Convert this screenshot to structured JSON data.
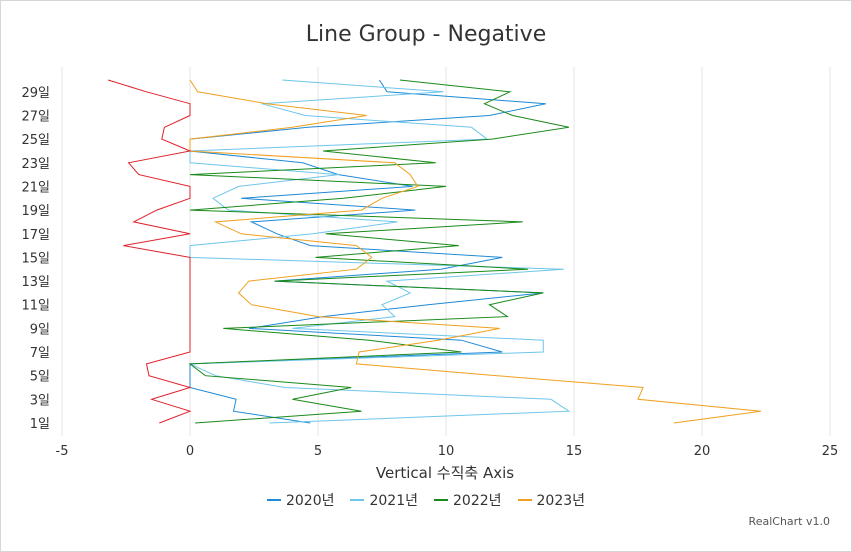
{
  "chart_data": {
    "type": "line",
    "orientation": "horizontal",
    "title": "Line Group - Negative",
    "xlabel": "Vertical 수직축 Axis",
    "ylabel": "",
    "xlim": [
      -5,
      25
    ],
    "x_ticks": [
      "-5",
      "0",
      "5",
      "10",
      "15",
      "20",
      "25"
    ],
    "categories": [
      "1일",
      "2일",
      "3일",
      "4일",
      "5일",
      "6일",
      "7일",
      "8일",
      "9일",
      "10일",
      "11일",
      "12일",
      "13일",
      "14일",
      "15일",
      "16일",
      "17일",
      "18일",
      "19일",
      "20일",
      "21일",
      "22일",
      "23일",
      "24일",
      "25일",
      "26일",
      "27일",
      "28일",
      "29일",
      "30일"
    ],
    "category_tick_labels": [
      "1일",
      "3일",
      "5일",
      "7일",
      "9일",
      "11일",
      "13일",
      "15일",
      "17일",
      "19일",
      "21일",
      "23일",
      "25일",
      "27일",
      "29일"
    ],
    "grid": "vertical",
    "legend_position": "bottom",
    "series": [
      {
        "name": "2020년",
        "color": "#1f8ad6",
        "values": [
          4.7,
          1.7,
          1.8,
          0.0,
          0.0,
          0.0,
          12.2,
          10.6,
          2.3,
          5.2,
          9.3,
          13.8,
          3.3,
          9.8,
          12.2,
          4.7,
          3.4,
          2.4,
          8.8,
          2.0,
          8.7,
          5.8,
          4.4,
          0.0,
          0.0,
          4.6,
          11.7,
          13.9,
          7.7,
          7.4
        ]
      },
      {
        "name": "2021년",
        "color": "#6fc6ea",
        "values": [
          3.1,
          14.8,
          14.1,
          3.7,
          1.0,
          0.0,
          13.8,
          13.8,
          4.0,
          8.0,
          7.5,
          8.6,
          7.7,
          14.6,
          0.0,
          0.0,
          4.8,
          8.1,
          1.5,
          0.9,
          1.9,
          5.8,
          0.0,
          0.0,
          11.6,
          11.0,
          4.5,
          2.8,
          9.9,
          3.6
        ]
      },
      {
        "name": "2022년",
        "color": "#1a8a1a",
        "values": [
          0.2,
          6.7,
          4.0,
          6.3,
          0.6,
          0.0,
          10.6,
          7.0,
          1.3,
          12.4,
          11.7,
          13.8,
          3.3,
          13.2,
          4.9,
          10.5,
          5.3,
          13.0,
          0.0,
          6.0,
          10.0,
          0.0,
          9.6,
          5.2,
          11.8,
          14.8,
          12.6,
          11.5,
          12.5,
          8.2
        ]
      },
      {
        "name": "2023년",
        "color": "#f0a020",
        "values": [
          18.9,
          22.3,
          17.5,
          17.7,
          12.0,
          6.5,
          6.6,
          9.7,
          12.1,
          5.0,
          2.4,
          1.9,
          2.3,
          6.5,
          7.1,
          6.5,
          2.0,
          1.0,
          6.7,
          7.5,
          8.9,
          8.6,
          8.0,
          0.0,
          0.0,
          4.0,
          6.9,
          3.0,
          0.3,
          0.0
        ]
      },
      {
        "name": "",
        "color": "#e0202a",
        "legend": false,
        "values": [
          -1.2,
          0.0,
          -1.5,
          0.0,
          -1.6,
          -1.7,
          0.0,
          0.0,
          0.0,
          0.0,
          0.0,
          0.0,
          0.0,
          0.0,
          0.0,
          -2.6,
          0.0,
          -2.2,
          -1.3,
          0.0,
          0.0,
          -2.0,
          -2.4,
          0.0,
          -1.1,
          -1.0,
          0.0,
          0.0,
          -1.7,
          -3.2
        ]
      }
    ]
  },
  "credit": "RealChart v1.0"
}
